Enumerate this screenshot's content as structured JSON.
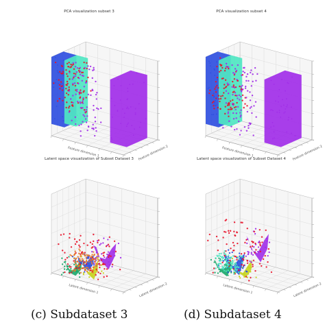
{
  "captions": [
    "(c) Subdataset 3",
    "(d) Subdataset 4"
  ],
  "palette": {
    "blue": "#2f4fe0",
    "purple": "#a12ee8",
    "red": "#e8132a",
    "cyan": "#4fe6c2",
    "yellow": "#c7d41e",
    "green": "#1aa86a",
    "orange": "#e87a2a",
    "grid": "#d6d6d6",
    "pane": "#f6f6f6",
    "edge": "#b5b5b5"
  },
  "chart_data": [
    {
      "type": "scatter",
      "projection": "3d",
      "title": "PCA visualization subset 3",
      "xlabel": "Feature dimension 1",
      "ylabel": "Feature dimension 2",
      "zlabel": "",
      "grid": true,
      "clusters": [
        {
          "color": "blue",
          "shape": "slab",
          "x": [
            0.0,
            0.18
          ],
          "y": [
            0.0,
            0.35
          ],
          "z": [
            0.15,
            1.0
          ]
        },
        {
          "color": "cyan",
          "shape": "slab",
          "x": [
            0.18,
            0.34
          ],
          "y": [
            0.0,
            0.35
          ],
          "z": [
            0.2,
            1.0
          ]
        },
        {
          "color": "purple",
          "shape": "slab",
          "x": [
            0.72,
            0.95
          ],
          "y": [
            0.2,
            0.8
          ],
          "z": [
            0.05,
            0.85
          ]
        },
        {
          "color": "red",
          "shape": "scatter",
          "x": [
            0.0,
            0.4
          ],
          "y": [
            0.0,
            0.4
          ],
          "z": [
            0.3,
            0.95
          ]
        },
        {
          "color": "purple",
          "shape": "scatter",
          "x": [
            0.2,
            0.55
          ],
          "y": [
            0.0,
            0.4
          ],
          "z": [
            0.05,
            0.95
          ]
        }
      ]
    },
    {
      "type": "scatter",
      "projection": "3d",
      "title": "PCA visualization subset 4",
      "xlabel": "Feature dimension 1",
      "ylabel": "Feature dimension 2",
      "zlabel": "",
      "grid": true,
      "clusters": [
        {
          "color": "blue",
          "shape": "slab",
          "x": [
            0.0,
            0.18
          ],
          "y": [
            0.0,
            0.35
          ],
          "z": [
            0.15,
            1.0
          ]
        },
        {
          "color": "cyan",
          "shape": "slab",
          "x": [
            0.18,
            0.34
          ],
          "y": [
            0.0,
            0.35
          ],
          "z": [
            0.2,
            1.0
          ]
        },
        {
          "color": "purple",
          "shape": "slab",
          "x": [
            0.72,
            0.95
          ],
          "y": [
            0.2,
            0.8
          ],
          "z": [
            0.05,
            0.85
          ]
        },
        {
          "color": "red",
          "shape": "scatter",
          "x": [
            0.0,
            0.4
          ],
          "y": [
            0.0,
            0.4
          ],
          "z": [
            0.3,
            0.95
          ]
        },
        {
          "color": "purple",
          "shape": "scatter",
          "x": [
            0.2,
            0.55
          ],
          "y": [
            0.0,
            0.4
          ],
          "z": [
            0.05,
            0.95
          ]
        }
      ]
    },
    {
      "type": "scatter",
      "projection": "3d",
      "title": "Latent space visualization of Subset Dataset 3",
      "xlabel": "Latent dimension 1",
      "ylabel": "Latent dimension 2",
      "zlabel": "",
      "grid": true,
      "clusters": [
        {
          "color": "yellow",
          "shape": "blob",
          "x": [
            0.3,
            0.55
          ],
          "y": [
            0.1,
            0.4
          ],
          "z": [
            0.0,
            0.25
          ]
        },
        {
          "color": "green",
          "shape": "blob",
          "x": [
            0.1,
            0.35
          ],
          "y": [
            0.0,
            0.3
          ],
          "z": [
            0.0,
            0.2
          ]
        },
        {
          "color": "blue",
          "shape": "blob",
          "x": [
            0.25,
            0.5
          ],
          "y": [
            0.05,
            0.35
          ],
          "z": [
            0.1,
            0.3
          ]
        },
        {
          "color": "purple",
          "shape": "blob",
          "x": [
            0.4,
            0.7
          ],
          "y": [
            0.2,
            0.6
          ],
          "z": [
            0.15,
            0.45
          ]
        },
        {
          "color": "red",
          "shape": "scatter",
          "x": [
            0.05,
            0.7
          ],
          "y": [
            0.0,
            0.6
          ],
          "z": [
            0.0,
            0.5
          ]
        },
        {
          "color": "orange",
          "shape": "scatter",
          "x": [
            0.2,
            0.5
          ],
          "y": [
            0.1,
            0.4
          ],
          "z": [
            0.05,
            0.3
          ]
        }
      ]
    },
    {
      "type": "scatter",
      "projection": "3d",
      "title": "Latent space visualization of Subset Dataset 4",
      "xlabel": "Latent dimension 1",
      "ylabel": "Latent dimension 2",
      "zlabel": "",
      "grid": true,
      "clusters": [
        {
          "color": "yellow",
          "shape": "blob",
          "x": [
            0.3,
            0.55
          ],
          "y": [
            0.05,
            0.35
          ],
          "z": [
            0.0,
            0.25
          ]
        },
        {
          "color": "green",
          "shape": "blob",
          "x": [
            0.05,
            0.3
          ],
          "y": [
            0.0,
            0.3
          ],
          "z": [
            0.0,
            0.2
          ]
        },
        {
          "color": "blue",
          "shape": "blob",
          "x": [
            0.15,
            0.45
          ],
          "y": [
            0.05,
            0.35
          ],
          "z": [
            0.05,
            0.3
          ]
        },
        {
          "color": "purple",
          "shape": "blob",
          "x": [
            0.35,
            0.65
          ],
          "y": [
            0.25,
            0.65
          ],
          "z": [
            0.2,
            0.55
          ]
        },
        {
          "color": "red",
          "shape": "scatter",
          "x": [
            0.0,
            0.65
          ],
          "y": [
            0.0,
            0.65
          ],
          "z": [
            0.0,
            0.6
          ]
        },
        {
          "color": "cyan",
          "shape": "scatter",
          "x": [
            0.1,
            0.4
          ],
          "y": [
            0.05,
            0.3
          ],
          "z": [
            0.05,
            0.25
          ]
        }
      ]
    }
  ]
}
